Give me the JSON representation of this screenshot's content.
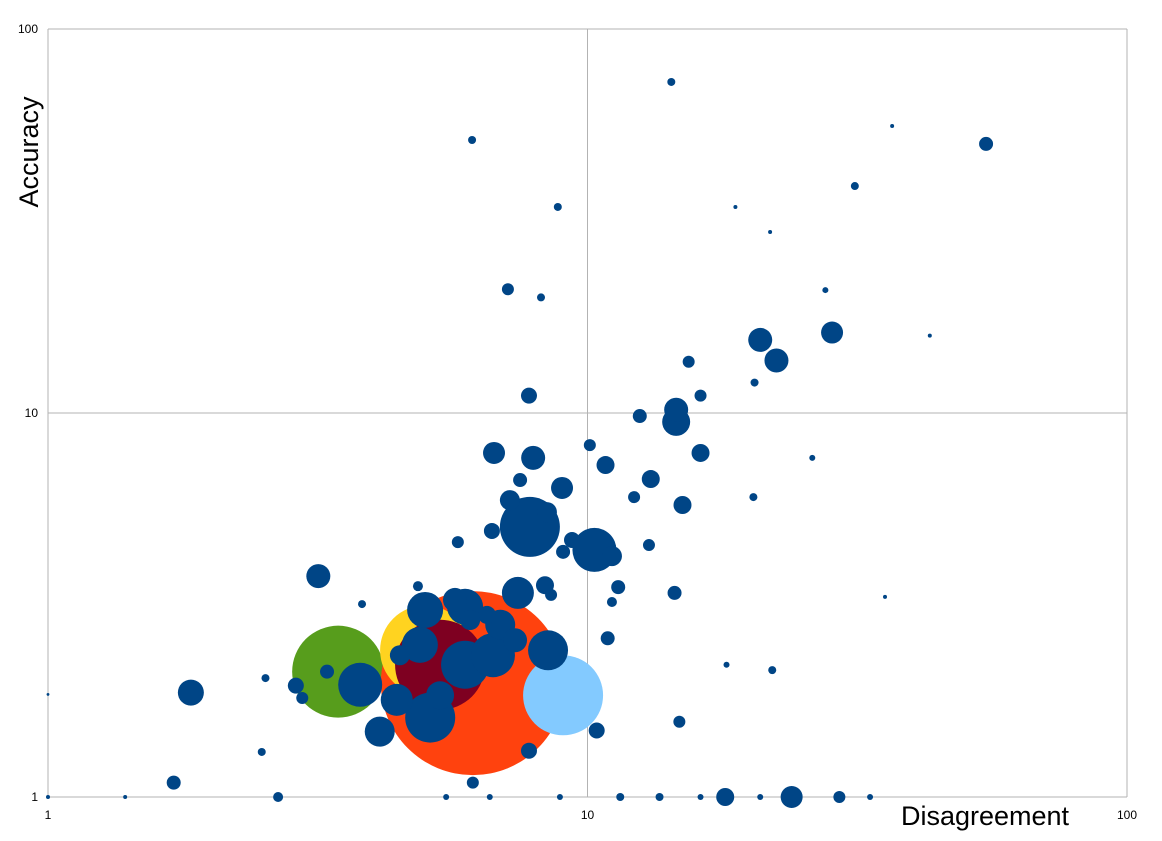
{
  "chart_data": {
    "type": "bubble",
    "x_label": "Disagreement",
    "y_label": "Accuracy",
    "xscale": "log",
    "yscale": "log",
    "grid": true,
    "xlim": [
      1,
      100
    ],
    "ylim": [
      1,
      100
    ],
    "xticks": [
      1,
      10,
      100
    ],
    "yticks": [
      1,
      10,
      100
    ],
    "series": [
      {
        "color": "#579d1c",
        "x": [
          3.45
        ],
        "values": [
          2.12
        ],
        "sizes": [
          2116
        ]
      },
      {
        "color": "#ff420e",
        "x": [
          6.13
        ],
        "values": [
          1.98
        ],
        "sizes": [
          8464
        ]
      },
      {
        "color": "#ffd320",
        "x": [
          5.0
        ],
        "values": [
          2.41
        ],
        "sizes": [
          2025
        ]
      },
      {
        "color": "#7e0021",
        "x": [
          5.33
        ],
        "values": [
          2.21
        ],
        "sizes": [
          2025
        ]
      },
      {
        "color": "#83caff",
        "x": [
          9.01
        ],
        "values": [
          1.84
        ],
        "sizes": [
          1600
        ]
      },
      {
        "color": "#004586",
        "x": [
          7.82,
          10.3,
          14.6,
          14.6,
          5.11,
          5.93,
          6.68,
          5.0,
          5.93,
          3.79,
          8.45,
          7.43,
          4.89,
          6.89,
          4.43,
          4.12,
          1.84,
          3.17,
          6.71,
          7.93,
          8.97,
          20.9,
          22.4,
          28.4,
          54.8,
          23.9,
          18.0,
          29.3,
          7.79,
          7.12,
          6.11,
          16.2,
          16.2,
          15.0,
          13.1,
          10.8,
          1.71,
          14.8,
          10.4,
          7.79,
          2.88,
          10.9,
          14.5,
          11.4,
          12.5,
          15.4,
          5.75,
          6.65,
          6.13,
          2.67,
          8.2,
          8.81,
          14.3,
          31.3,
          10.1,
          9.01,
          7.5,
          12.2,
          13.0,
          8.56,
          11.1,
          3.82,
          2.49,
          2.53,
          3.29,
          2.96,
          5.47,
          6.59,
          8.89,
          11.5,
          13.6,
          16.2,
          20.9,
          33.4,
          1.39,
          1,
          1,
          21.8,
          43.1,
          36.7,
          18.8,
          27.6,
          20.4,
          20.3,
          26.1,
          18.1,
          22.0,
          35.6,
          4.85,
          6.51,
          8.34,
          5.68,
          7.34,
          4.49,
          9.36,
          11.1,
          8.41,
          7.18,
          6.06,
          5.33
        ],
        "values": [
          5.05,
          4.4,
          9.48,
          10.2,
          1.61,
          2.21,
          2.34,
          3.07,
          3.13,
          1.96,
          2.41,
          3.4,
          2.49,
          2.81,
          1.79,
          1.48,
          1.87,
          3.76,
          7.87,
          7.64,
          6.38,
          15.5,
          13.7,
          16.2,
          50.2,
          1,
          1,
          1,
          11.1,
          21.0,
          51.4,
          11.1,
          7.87,
          5.76,
          6.73,
          7.32,
          1.09,
          1.57,
          1.49,
          1.32,
          1.95,
          2.59,
          3.4,
          3.52,
          9.82,
          13.6,
          4.61,
          4.93,
          1.09,
          1,
          20.0,
          34.4,
          72.8,
          39.0,
          8.25,
          4.35,
          6.69,
          6.04,
          4.53,
          3.36,
          3.22,
          3.18,
          1.31,
          2.04,
          2.12,
          1.81,
          1,
          1,
          1,
          1,
          1,
          1,
          1,
          1,
          1,
          1,
          1.85,
          29.6,
          15.9,
          55.9,
          34.4,
          20.9,
          12.0,
          6.04,
          7.64,
          2.21,
          2.14,
          3.32,
          3.54,
          2.98,
          3.56,
          3.26,
          2.56,
          2.34,
          4.67,
          4.24,
          5.52,
          5.93,
          2.89,
          1.84
        ],
        "sizes": [
          900,
          484,
          196,
          144,
          625,
          576,
          484,
          324,
          324,
          484,
          400,
          256,
          324,
          225,
          256,
          225,
          169,
          144,
          121,
          144,
          121,
          144,
          144,
          121,
          49,
          121,
          81,
          36,
          64,
          36,
          16,
          36,
          81,
          81,
          81,
          81,
          49,
          36,
          64,
          64,
          64,
          49,
          49,
          49,
          49,
          36,
          36,
          64,
          36,
          25,
          16,
          16,
          16,
          16,
          36,
          49,
          49,
          36,
          36,
          36,
          25,
          16,
          16,
          16,
          49,
          36,
          9,
          9,
          9,
          16,
          16,
          9,
          9,
          9,
          4,
          4,
          2,
          4,
          4,
          4,
          4,
          9,
          16,
          16,
          9,
          9,
          16,
          4,
          25,
          81,
          81,
          144,
          144,
          100,
          64,
          100,
          100,
          100,
          100,
          196
        ]
      }
    ]
  }
}
